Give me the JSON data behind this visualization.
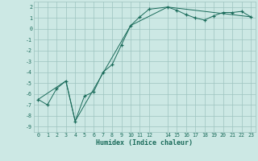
{
  "xlabel": "Humidex (Indice chaleur)",
  "bg_color": "#cce8e4",
  "grid_color": "#9dc4bf",
  "line_color": "#1a6b5a",
  "xlim": [
    -0.5,
    23.5
  ],
  "ylim": [
    -9.5,
    2.5
  ],
  "xtick_vals": [
    0,
    1,
    2,
    3,
    4,
    5,
    6,
    7,
    8,
    9,
    10,
    11,
    12,
    14,
    15,
    16,
    17,
    18,
    19,
    20,
    21,
    22,
    23
  ],
  "xtick_labels": [
    "0",
    "1",
    "2",
    "3",
    "4",
    "5",
    "6",
    "7",
    "8",
    "9",
    "10",
    "11",
    "12",
    "14",
    "15",
    "16",
    "17",
    "18",
    "19",
    "20",
    "21",
    "22",
    "23"
  ],
  "ytick_vals": [
    -9,
    -8,
    -7,
    -6,
    -5,
    -4,
    -3,
    -2,
    -1,
    0,
    1,
    2
  ],
  "ytick_labels": [
    "-9",
    "-8",
    "-7",
    "-6",
    "-5",
    "-4",
    "-3",
    "-2",
    "-1",
    "0",
    "1",
    "2"
  ],
  "line1_x": [
    0,
    1,
    2,
    3,
    4,
    5,
    6,
    7,
    8,
    9,
    10,
    11,
    12,
    14,
    15,
    16,
    17,
    18,
    19,
    20,
    21,
    22,
    23
  ],
  "line1_y": [
    -6.5,
    -7.0,
    -5.5,
    -4.8,
    -8.5,
    -6.2,
    -5.8,
    -4.0,
    -3.3,
    -1.5,
    0.3,
    1.1,
    1.8,
    2.0,
    1.7,
    1.3,
    1.0,
    0.8,
    1.2,
    1.5,
    1.5,
    1.6,
    1.1
  ],
  "line2_x": [
    0,
    3,
    4,
    10,
    14,
    23
  ],
  "line2_y": [
    -6.5,
    -4.8,
    -8.5,
    0.3,
    2.0,
    1.1
  ]
}
